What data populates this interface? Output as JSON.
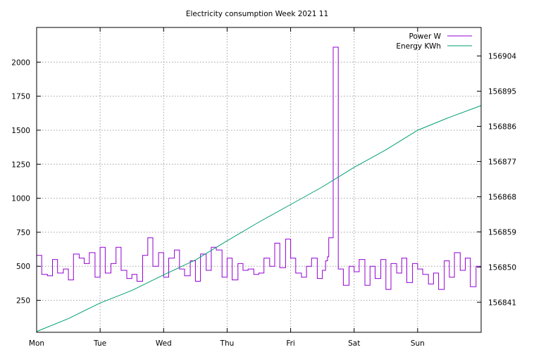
{
  "chart_data": {
    "type": "line",
    "title": "Electricity consumption Week 2021 11",
    "x_tick_labels": [
      "Mon",
      "Tue",
      "Wed",
      "Thu",
      "Fri",
      "Sat",
      "Sun"
    ],
    "x_range_days": [
      0,
      7
    ],
    "y_left": {
      "ticks": [
        250,
        500,
        750,
        1000,
        1250,
        1500,
        1750,
        2000
      ],
      "range": [
        15,
        2255
      ]
    },
    "y_right": {
      "ticks": [
        156841,
        156850,
        156859,
        156868,
        156877,
        156886,
        156895,
        156904
      ],
      "range": [
        156833.3,
        156911.3
      ]
    },
    "grid": true,
    "legend_position": "top-right",
    "series": [
      {
        "name": "Power W",
        "axis": "left",
        "color": "#9400d3",
        "style": "step",
        "note": "raw samples approx. every 30 min, values between ~330 and ~720 W, one spike to ~2110 W on Friday evening",
        "x": [
          0.0,
          0.08,
          0.17,
          0.25,
          0.33,
          0.42,
          0.5,
          0.58,
          0.67,
          0.75,
          0.83,
          0.92,
          1.0,
          1.08,
          1.17,
          1.25,
          1.33,
          1.42,
          1.5,
          1.58,
          1.67,
          1.75,
          1.83,
          1.92,
          2.0,
          2.08,
          2.17,
          2.25,
          2.33,
          2.42,
          2.5,
          2.58,
          2.67,
          2.75,
          2.83,
          2.92,
          3.0,
          3.08,
          3.17,
          3.25,
          3.33,
          3.42,
          3.5,
          3.58,
          3.67,
          3.75,
          3.83,
          3.92,
          4.0,
          4.08,
          4.17,
          4.25,
          4.33,
          4.42,
          4.5,
          4.55,
          4.58,
          4.6,
          4.67,
          4.75,
          4.83,
          4.92,
          5.0,
          5.08,
          5.17,
          5.25,
          5.33,
          5.42,
          5.5,
          5.58,
          5.67,
          5.75,
          5.83,
          5.92,
          6.0,
          6.08,
          6.17,
          6.25,
          6.33,
          6.42,
          6.5,
          6.58,
          6.67,
          6.75,
          6.83,
          6.92,
          7.0
        ],
        "values": [
          580,
          440,
          430,
          550,
          450,
          480,
          400,
          590,
          560,
          520,
          600,
          420,
          640,
          450,
          520,
          640,
          470,
          410,
          440,
          390,
          580,
          710,
          500,
          600,
          420,
          560,
          620,
          480,
          430,
          540,
          390,
          590,
          470,
          640,
          620,
          420,
          560,
          400,
          520,
          470,
          480,
          440,
          450,
          560,
          500,
          670,
          490,
          700,
          560,
          450,
          420,
          500,
          560,
          410,
          470,
          540,
          570,
          710,
          2110,
          480,
          360,
          500,
          460,
          550,
          360,
          500,
          410,
          550,
          330,
          520,
          450,
          560,
          380,
          520,
          480,
          440,
          370,
          450,
          330,
          540,
          420,
          600,
          470,
          560,
          350,
          500,
          540
        ]
      },
      {
        "name": "Energy KWh",
        "axis": "right",
        "color": "#009e73",
        "style": "line",
        "x": [
          0,
          0.5,
          1,
          1.5,
          2,
          2.5,
          3,
          3.5,
          4,
          4.5,
          5,
          5.5,
          6,
          6.5,
          7
        ],
        "values": [
          156833.5,
          156836.8,
          156840.8,
          156844.0,
          156848.0,
          156851.8,
          156856.7,
          156861.5,
          156866.0,
          156870.5,
          156875.5,
          156880.0,
          156885.0,
          156888.3,
          156891.3
        ]
      }
    ]
  }
}
